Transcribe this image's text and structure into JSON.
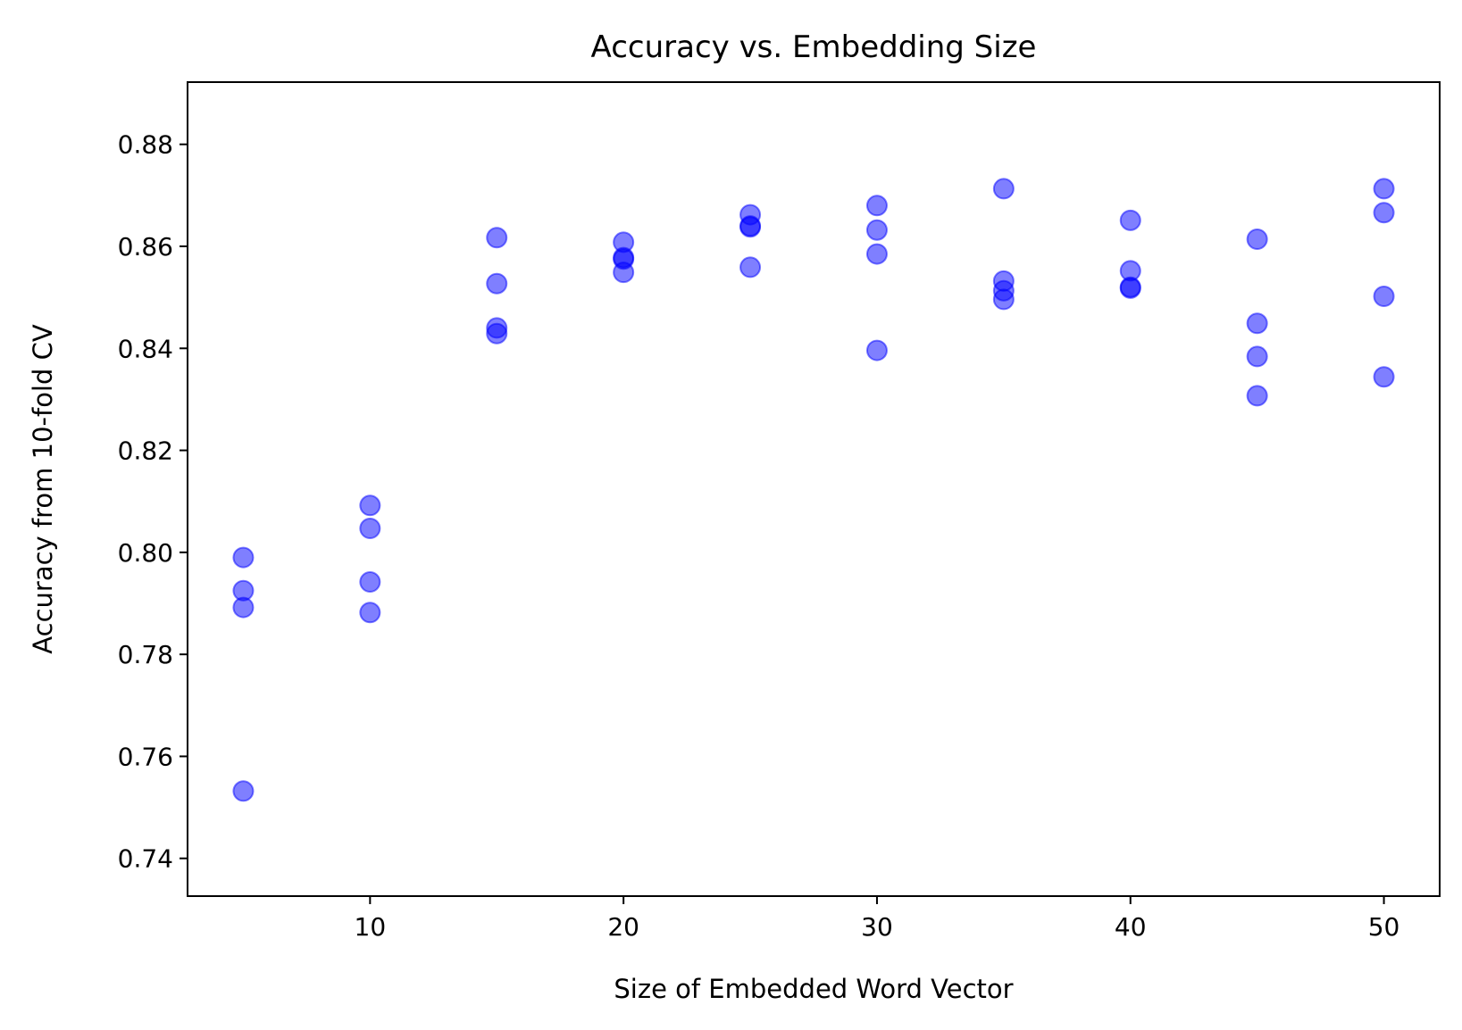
{
  "chart_data": {
    "type": "scatter",
    "title": "Accuracy vs. Embedding Size",
    "xlabel": "Size of Embedded Word Vector",
    "ylabel": "Accuracy from 10-fold CV",
    "xlim": [
      2.8,
      52.2
    ],
    "ylim": [
      0.7326,
      0.8922
    ],
    "xticks": [
      10,
      20,
      30,
      40,
      50
    ],
    "yticks": [
      0.74,
      0.76,
      0.78,
      0.8,
      0.82,
      0.84,
      0.86,
      0.88
    ],
    "xtick_labels": [
      "10",
      "20",
      "30",
      "40",
      "50"
    ],
    "ytick_labels": [
      "0.74",
      "0.76",
      "0.78",
      "0.80",
      "0.82",
      "0.84",
      "0.86",
      "0.88"
    ],
    "grid": false,
    "marker_color": "#0000ff",
    "marker_alpha": 0.5,
    "points": [
      {
        "x": 5,
        "y": 0.799
      },
      {
        "x": 5,
        "y": 0.7925
      },
      {
        "x": 5,
        "y": 0.7892
      },
      {
        "x": 5,
        "y": 0.7532
      },
      {
        "x": 10,
        "y": 0.8092
      },
      {
        "x": 10,
        "y": 0.8047
      },
      {
        "x": 10,
        "y": 0.7942
      },
      {
        "x": 10,
        "y": 0.7882
      },
      {
        "x": 15,
        "y": 0.8617
      },
      {
        "x": 15,
        "y": 0.8527
      },
      {
        "x": 15,
        "y": 0.844
      },
      {
        "x": 15,
        "y": 0.8429
      },
      {
        "x": 20,
        "y": 0.8608
      },
      {
        "x": 20,
        "y": 0.8578
      },
      {
        "x": 20,
        "y": 0.8575
      },
      {
        "x": 20,
        "y": 0.8549
      },
      {
        "x": 25,
        "y": 0.8662
      },
      {
        "x": 25,
        "y": 0.864
      },
      {
        "x": 25,
        "y": 0.8638
      },
      {
        "x": 25,
        "y": 0.8559
      },
      {
        "x": 30,
        "y": 0.868
      },
      {
        "x": 30,
        "y": 0.8632
      },
      {
        "x": 30,
        "y": 0.8585
      },
      {
        "x": 30,
        "y": 0.8396
      },
      {
        "x": 35,
        "y": 0.8713
      },
      {
        "x": 35,
        "y": 0.8532
      },
      {
        "x": 35,
        "y": 0.8513
      },
      {
        "x": 35,
        "y": 0.8496
      },
      {
        "x": 40,
        "y": 0.8651
      },
      {
        "x": 40,
        "y": 0.8552
      },
      {
        "x": 40,
        "y": 0.852
      },
      {
        "x": 40,
        "y": 0.8518
      },
      {
        "x": 45,
        "y": 0.8614
      },
      {
        "x": 45,
        "y": 0.8449
      },
      {
        "x": 45,
        "y": 0.8384
      },
      {
        "x": 45,
        "y": 0.8307
      },
      {
        "x": 50,
        "y": 0.8713
      },
      {
        "x": 50,
        "y": 0.8666
      },
      {
        "x": 50,
        "y": 0.8502
      },
      {
        "x": 50,
        "y": 0.8344
      }
    ]
  }
}
